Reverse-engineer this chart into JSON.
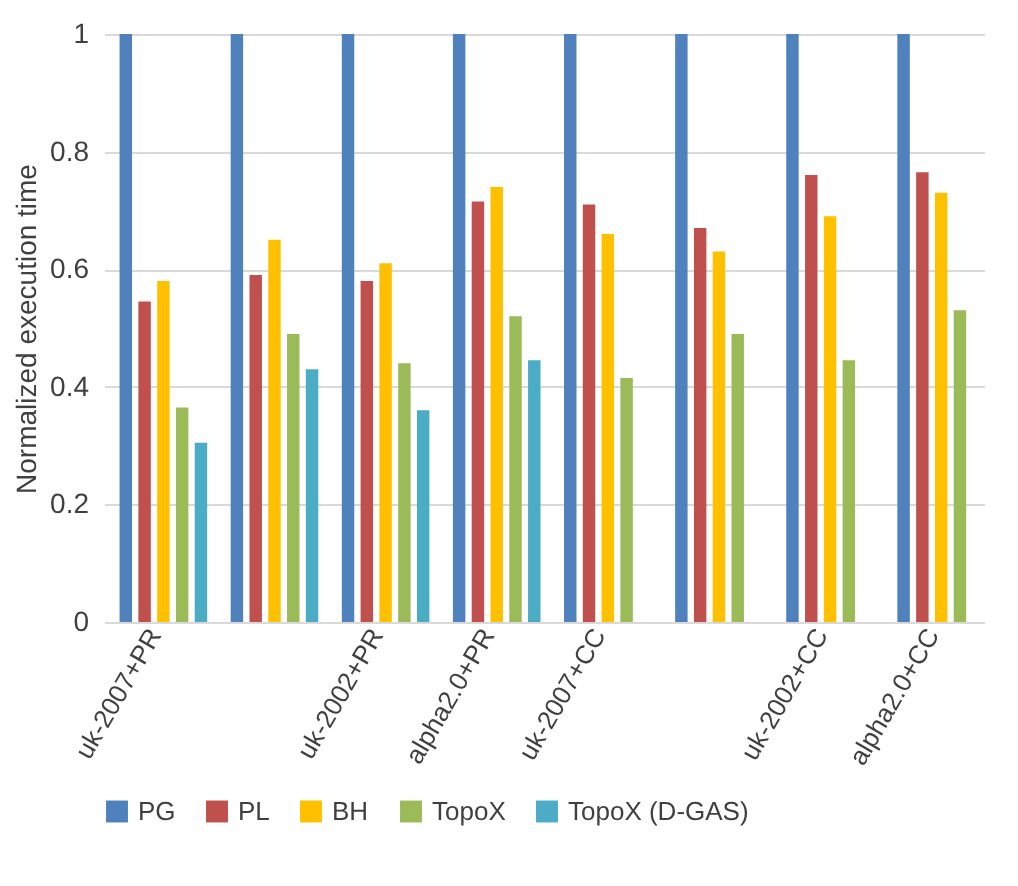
{
  "chart_data": {
    "type": "bar",
    "ylabel": "Normalized execution time",
    "categories": [
      "uk-2007+PR",
      null,
      "uk-2002+PR",
      "alpha2.0+PR",
      "uk-2007+CC",
      null,
      "uk-2002+CC",
      "alpha2.0+CC"
    ],
    "series": [
      {
        "name": "PG",
        "color": "#4f81bd",
        "values": [
          1,
          1,
          1,
          1,
          1,
          1,
          1,
          1
        ]
      },
      {
        "name": "PL",
        "color": "#c0504d",
        "values": [
          0.545,
          0.59,
          0.58,
          0.715,
          0.71,
          0.67,
          0.76,
          0.765
        ]
      },
      {
        "name": "BH",
        "color": "#ffc000",
        "values": [
          0.58,
          0.65,
          0.61,
          0.74,
          0.66,
          0.63,
          0.69,
          0.73
        ]
      },
      {
        "name": "TopoX",
        "color": "#9bbb59",
        "values": [
          0.365,
          0.49,
          0.44,
          0.52,
          0.415,
          0.49,
          0.445,
          0.53
        ]
      },
      {
        "name": "TopoX (D-GAS)",
        "color": "#4bacc6",
        "values": [
          0.305,
          0.43,
          0.36,
          0.445,
          null,
          null,
          null,
          null
        ]
      }
    ],
    "ylim": [
      0,
      1
    ],
    "yticks": [
      0,
      0.2,
      0.4,
      0.6,
      0.8,
      1
    ],
    "grid": "y",
    "legend": "bottom"
  }
}
